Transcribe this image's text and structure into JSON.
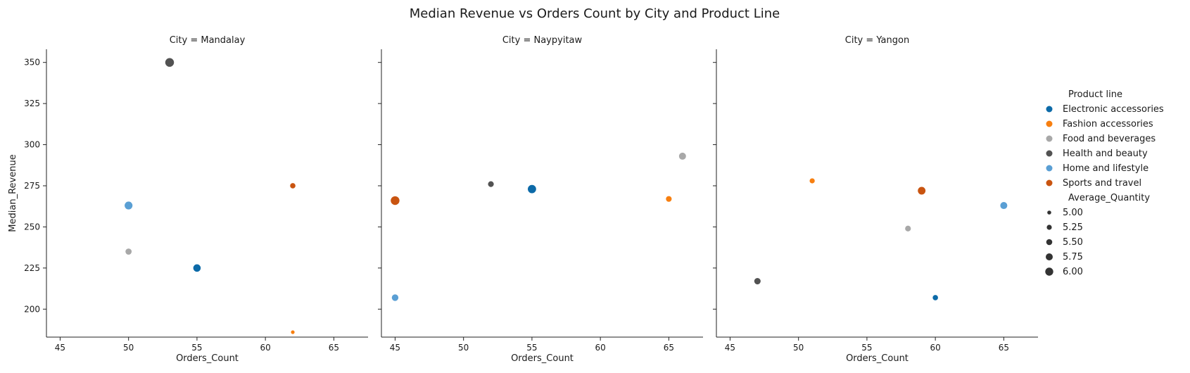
{
  "chart_data": {
    "type": "scatter",
    "title": "Median Revenue vs Orders Count by City and Product Line",
    "xlabel": "Orders_Count",
    "ylabel": "Median_Revenue",
    "xlim": [
      44,
      67.5
    ],
    "ylim": [
      183,
      358
    ],
    "xticks": [
      45,
      50,
      55,
      60,
      65
    ],
    "yticks": [
      200,
      225,
      250,
      275,
      300,
      325,
      350
    ],
    "grid": false,
    "legend_position": "right",
    "hue_title": "Product line",
    "size_title": "Average_Quantity",
    "size_legend_values": [
      "5.00",
      "5.25",
      "5.50",
      "5.75",
      "6.00"
    ],
    "hue_levels": [
      {
        "name": "Electronic accessories",
        "color": "#0c6aa8"
      },
      {
        "name": "Fashion accessories",
        "color": "#f77f10"
      },
      {
        "name": "Food and beverages",
        "color": "#a8a8a8"
      },
      {
        "name": "Health and beauty",
        "color": "#525252"
      },
      {
        "name": "Home and lifestyle",
        "color": "#5a9fd4"
      },
      {
        "name": "Sports and travel",
        "color": "#c95410"
      }
    ],
    "panels": [
      {
        "title": "City = Mandalay",
        "points": [
          {
            "product_line": "Health and beauty",
            "x": 53,
            "y": 350,
            "size": 6.1
          },
          {
            "product_line": "Home and lifestyle",
            "x": 50,
            "y": 263,
            "size": 5.9
          },
          {
            "product_line": "Food and beverages",
            "x": 50,
            "y": 235,
            "size": 5.5
          },
          {
            "product_line": "Electronic accessories",
            "x": 55,
            "y": 225,
            "size": 5.8
          },
          {
            "product_line": "Sports and travel",
            "x": 62,
            "y": 275,
            "size": 5.3
          },
          {
            "product_line": "Fashion accessories",
            "x": 62,
            "y": 186,
            "size": 4.9
          }
        ]
      },
      {
        "title": "City = Naypyitaw",
        "points": [
          {
            "product_line": "Sports and travel",
            "x": 45,
            "y": 266,
            "size": 6.1
          },
          {
            "product_line": "Home and lifestyle",
            "x": 45,
            "y": 207,
            "size": 5.6
          },
          {
            "product_line": "Health and beauty",
            "x": 52,
            "y": 276,
            "size": 5.4
          },
          {
            "product_line": "Electronic accessories",
            "x": 55,
            "y": 273,
            "size": 6.0
          },
          {
            "product_line": "Fashion accessories",
            "x": 65,
            "y": 267,
            "size": 5.4
          },
          {
            "product_line": "Food and beverages",
            "x": 66,
            "y": 293,
            "size": 5.7
          }
        ]
      },
      {
        "title": "City = Yangon",
        "points": [
          {
            "product_line": "Fashion accessories",
            "x": 51,
            "y": 278,
            "size": 5.25
          },
          {
            "product_line": "Sports and travel",
            "x": 59,
            "y": 272,
            "size": 5.85
          },
          {
            "product_line": "Food and beverages",
            "x": 58,
            "y": 249,
            "size": 5.4
          },
          {
            "product_line": "Home and lifestyle",
            "x": 65,
            "y": 263,
            "size": 5.7
          },
          {
            "product_line": "Health and beauty",
            "x": 47,
            "y": 217,
            "size": 5.55
          },
          {
            "product_line": "Electronic accessories",
            "x": 60,
            "y": 207,
            "size": 5.3
          }
        ]
      }
    ]
  }
}
